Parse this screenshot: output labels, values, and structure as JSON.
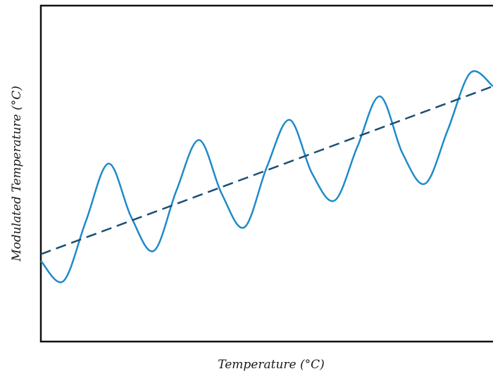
{
  "chart_data": {
    "type": "line",
    "title": "",
    "xlabel": "Temperature (°C)",
    "ylabel": "Modulated Temperature (°C)",
    "xlim": [
      0,
      1
    ],
    "ylim": [
      0,
      1
    ],
    "ticks": "none",
    "grid": false,
    "legend": "none",
    "series": [
      {
        "style": "solid",
        "color": "#1f8ac9",
        "x": [
          0.0,
          0.05,
          0.1,
          0.15,
          0.2,
          0.25,
          0.3,
          0.35,
          0.4,
          0.45,
          0.5,
          0.55,
          0.6,
          0.65,
          0.7,
          0.75,
          0.8,
          0.85,
          0.9,
          0.95,
          1.0
        ],
        "y": [
          0.24,
          0.18,
          0.36,
          0.53,
          0.37,
          0.27,
          0.45,
          0.6,
          0.44,
          0.34,
          0.52,
          0.66,
          0.5,
          0.42,
          0.58,
          0.73,
          0.56,
          0.47,
          0.63,
          0.8,
          0.76
        ]
      },
      {
        "style": "dashed",
        "color": "#1a4f74",
        "x": [
          0,
          1
        ],
        "y": [
          0.26,
          0.76
        ]
      }
    ]
  }
}
